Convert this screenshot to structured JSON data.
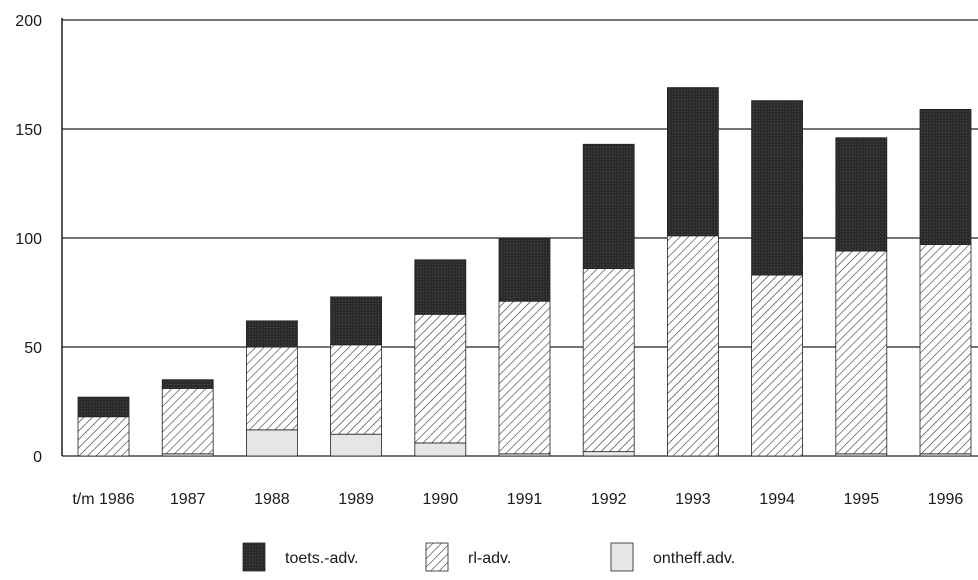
{
  "chart_data": {
    "type": "bar",
    "stacked": true,
    "categories": [
      "t/m 1986",
      "1987",
      "1988",
      "1989",
      "1990",
      "1991",
      "1992",
      "1993",
      "1994",
      "1995",
      "1996"
    ],
    "series": [
      {
        "name": "ontheff.adv.",
        "values": [
          0,
          1,
          12,
          10,
          6,
          1,
          2,
          0,
          0,
          1,
          1
        ],
        "fill": "light-gray"
      },
      {
        "name": "rl-adv.",
        "values": [
          18,
          30,
          38,
          41,
          59,
          70,
          84,
          101,
          83,
          93,
          96
        ],
        "fill": "diagonal-hatch"
      },
      {
        "name": "toets.-adv.",
        "values": [
          9,
          4,
          12,
          22,
          25,
          29,
          57,
          68,
          80,
          52,
          62
        ],
        "fill": "dark-gray"
      }
    ],
    "ylim": [
      0,
      200
    ],
    "yticks": [
      "0",
      "50",
      "100",
      "150",
      "200"
    ],
    "grid": true,
    "legend_position": "bottom",
    "legend_order": [
      "toets.-adv.",
      "rl-adv.",
      "ontheff.adv."
    ],
    "title": "",
    "xlabel": "",
    "ylabel": "",
    "colors": {
      "dark": "#2b2b2b",
      "light": "#e6e6e6",
      "hatch": "#333333",
      "grid": "#222222"
    }
  }
}
